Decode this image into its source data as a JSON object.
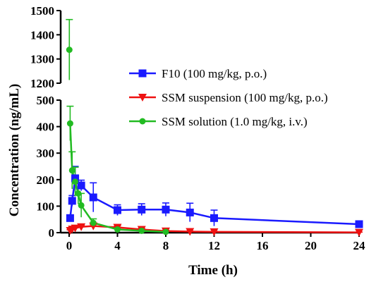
{
  "chart_data": {
    "type": "line",
    "xlabel": "Time (h)",
    "ylabel": "Concentration (ng/mL)",
    "x_ticks": [
      "0",
      "4",
      "8",
      "12",
      "16",
      "20",
      "24"
    ],
    "y_ticks_lower": [
      "0",
      "100",
      "200",
      "300",
      "400",
      "500"
    ],
    "y_ticks_upper": [
      "1200",
      "1300",
      "1400",
      "1500"
    ],
    "xlim": [
      0,
      24
    ],
    "ylim_lower": [
      0,
      500
    ],
    "ylim_upper": [
      1200,
      1500
    ],
    "axis_break": true,
    "legend_position": "top-right",
    "series": [
      {
        "name": "F10 (100 mg/kg, p.o.)",
        "color": "#1a1aff",
        "marker": "square",
        "points": [
          {
            "x": 0.083,
            "y": 55,
            "err": 10
          },
          {
            "x": 0.25,
            "y": 120,
            "err": 20
          },
          {
            "x": 0.5,
            "y": 205,
            "err": 45
          },
          {
            "x": 1,
            "y": 178,
            "err": 20
          },
          {
            "x": 2,
            "y": 133,
            "err": 55
          },
          {
            "x": 4,
            "y": 85,
            "err": 20
          },
          {
            "x": 6,
            "y": 87,
            "err": 22
          },
          {
            "x": 8,
            "y": 87,
            "err": 25
          },
          {
            "x": 10,
            "y": 76,
            "err": 35
          },
          {
            "x": 12,
            "y": 55,
            "err": 30
          },
          {
            "x": 24,
            "y": 32,
            "err": 5
          }
        ]
      },
      {
        "name": "SSM suspension (100 mg/kg, p.o.)",
        "color": "#ee1111",
        "marker": "triangle-down",
        "points": [
          {
            "x": 0.083,
            "y": 8,
            "err": 3
          },
          {
            "x": 0.25,
            "y": 13,
            "err": 4
          },
          {
            "x": 0.5,
            "y": 17,
            "err": 5
          },
          {
            "x": 1,
            "y": 22,
            "err": 6
          },
          {
            "x": 2,
            "y": 25,
            "err": 6
          },
          {
            "x": 4,
            "y": 20,
            "err": 6
          },
          {
            "x": 6,
            "y": 12,
            "err": 4
          },
          {
            "x": 8,
            "y": 6,
            "err": 3
          },
          {
            "x": 10,
            "y": 4,
            "err": 2
          },
          {
            "x": 12,
            "y": 3,
            "err": 2
          },
          {
            "x": 24,
            "y": 1,
            "err": 1
          }
        ]
      },
      {
        "name": "SSM solution (1.0 mg/kg, i.v.)",
        "color": "#22bb22",
        "marker": "circle",
        "points": [
          {
            "x": 0.017,
            "y": 1338,
            "err": 125
          },
          {
            "x": 0.083,
            "y": 412,
            "err": 65
          },
          {
            "x": 0.25,
            "y": 235,
            "err": 70
          },
          {
            "x": 0.5,
            "y": 192,
            "err": 55
          },
          {
            "x": 0.75,
            "y": 148,
            "err": 40
          },
          {
            "x": 1,
            "y": 103,
            "err": 45
          },
          {
            "x": 2,
            "y": 37,
            "err": 15
          },
          {
            "x": 4,
            "y": 12,
            "err": 5
          },
          {
            "x": 6,
            "y": 7,
            "err": 3
          },
          {
            "x": 8,
            "y": 3,
            "err": 2
          }
        ]
      }
    ]
  }
}
